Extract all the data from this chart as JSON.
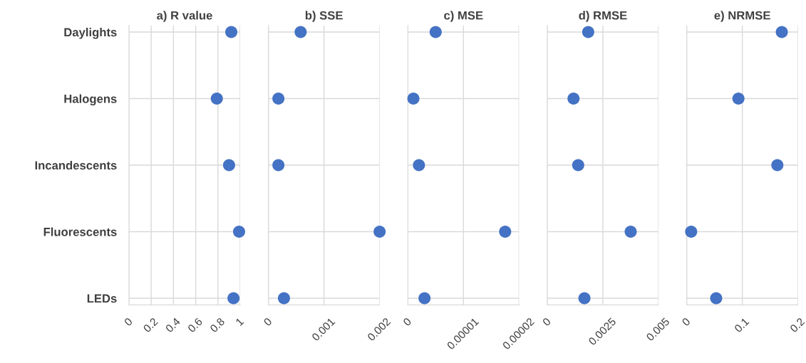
{
  "chart_data": [
    {
      "type": "scatter",
      "title": "a) R value",
      "categories": [
        "Daylights",
        "Halogens",
        "Incandescents",
        "Fluorescents",
        "LEDs"
      ],
      "orientation": "horizontal",
      "values": [
        0.92,
        0.79,
        0.9,
        0.99,
        0.94
      ],
      "color": "#4472c4",
      "marker": "circle",
      "xlim": [
        0,
        1
      ],
      "xticks": [
        0,
        0.2,
        0.4,
        0.6,
        0.8,
        1
      ],
      "grid": true
    },
    {
      "type": "scatter",
      "title": "b) SSE",
      "categories": [
        null,
        null,
        null,
        null,
        null
      ],
      "orientation": "horizontal",
      "values": [
        0.00058,
        0.00018,
        0.00018,
        0.002,
        0.00028
      ],
      "color": "#4472c4",
      "marker": "circle",
      "xlim": [
        0,
        0.002
      ],
      "xticks": [
        0,
        0.001,
        0.002
      ],
      "grid": true,
      "tick_labels": "x"
    },
    {
      "type": "scatter",
      "title": "c) MSE",
      "categories": [
        null,
        null,
        null,
        null,
        null
      ],
      "orientation": "horizontal",
      "values": [
        5e-06,
        1e-06,
        2e-06,
        1.75e-05,
        3e-06
      ],
      "color": "#4472c4",
      "marker": "circle",
      "xlim": [
        0,
        2e-05
      ],
      "xticks": [
        0,
        {
          "value": 1e-05,
          "label": "0.00001"
        },
        {
          "value": 2e-05,
          "label": "0.00002"
        }
      ],
      "grid": true,
      "tick_labels": "x"
    },
    {
      "type": "scatter",
      "title": "d) RMSE",
      "categories": [
        null,
        null,
        null,
        null,
        null
      ],
      "orientation": "horizontal",
      "values": [
        0.00184,
        0.00118,
        0.00139,
        0.00375,
        0.00167
      ],
      "color": "#4472c4",
      "marker": "circle",
      "xlim": [
        0,
        0.005
      ],
      "xticks": [
        0,
        0.0025,
        0.005
      ],
      "grid": true,
      "tick_labels": "x"
    },
    {
      "type": "scatter",
      "title": "e) NRMSE",
      "categories": [
        null,
        null,
        null,
        null,
        null
      ],
      "orientation": "horizontal",
      "values": [
        0.171,
        0.093,
        0.163,
        0.008,
        0.053
      ],
      "color": "#4472c4",
      "marker": "circle",
      "xlim": [
        0,
        0.2
      ],
      "xticks": [
        0,
        0.1,
        0.2
      ],
      "grid": true,
      "tick_labels": "x"
    }
  ]
}
